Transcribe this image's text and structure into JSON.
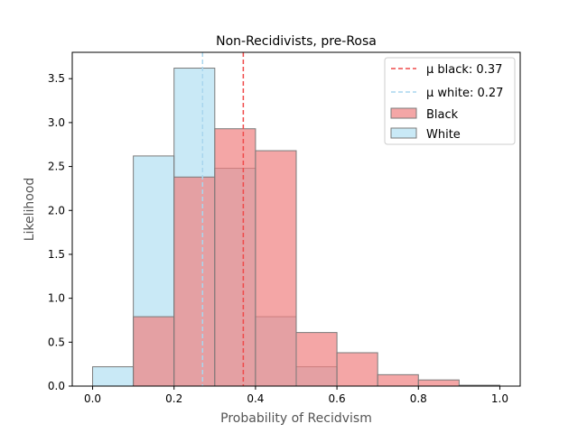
{
  "chart_data": {
    "type": "bar",
    "title": "Non-Recidivists, pre-Rosa",
    "xlabel": "Probability of Recidvism",
    "ylabel": "Likelihood",
    "xlim": [
      -0.05,
      1.05
    ],
    "ylim": [
      0,
      3.8
    ],
    "xticks": [
      0.0,
      0.2,
      0.4,
      0.6,
      0.8,
      1.0
    ],
    "xtick_labels": [
      "0.0",
      "0.2",
      "0.4",
      "0.6",
      "0.8",
      "1.0"
    ],
    "yticks": [
      0.0,
      0.5,
      1.0,
      1.5,
      2.0,
      2.5,
      3.0,
      3.5
    ],
    "ytick_labels": [
      "0.0",
      "0.5",
      "1.0",
      "1.5",
      "2.0",
      "2.5",
      "3.0",
      "3.5"
    ],
    "bin_edges": [
      0.0,
      0.1,
      0.2,
      0.3,
      0.4,
      0.5,
      0.6,
      0.7,
      0.8,
      0.9,
      1.0
    ],
    "series": [
      {
        "name": "Black",
        "color": "#f08080",
        "alpha": 0.7,
        "values": [
          0.0,
          0.79,
          2.38,
          2.93,
          2.68,
          0.61,
          0.38,
          0.13,
          0.07,
          0.01
        ]
      },
      {
        "name": "White",
        "color": "#87ceeb",
        "alpha": 0.45,
        "values": [
          0.22,
          2.62,
          3.62,
          2.48,
          0.79,
          0.22,
          0.0,
          0.0,
          0.0,
          0.0
        ]
      }
    ],
    "mean_lines": [
      {
        "label": "μ black: 0.37",
        "value": 0.37,
        "color": "#ef4a4a"
      },
      {
        "label": "μ white: 0.27",
        "value": 0.27,
        "color": "#a9d6ee"
      }
    ],
    "legend_position": "top-right",
    "grid": false
  }
}
